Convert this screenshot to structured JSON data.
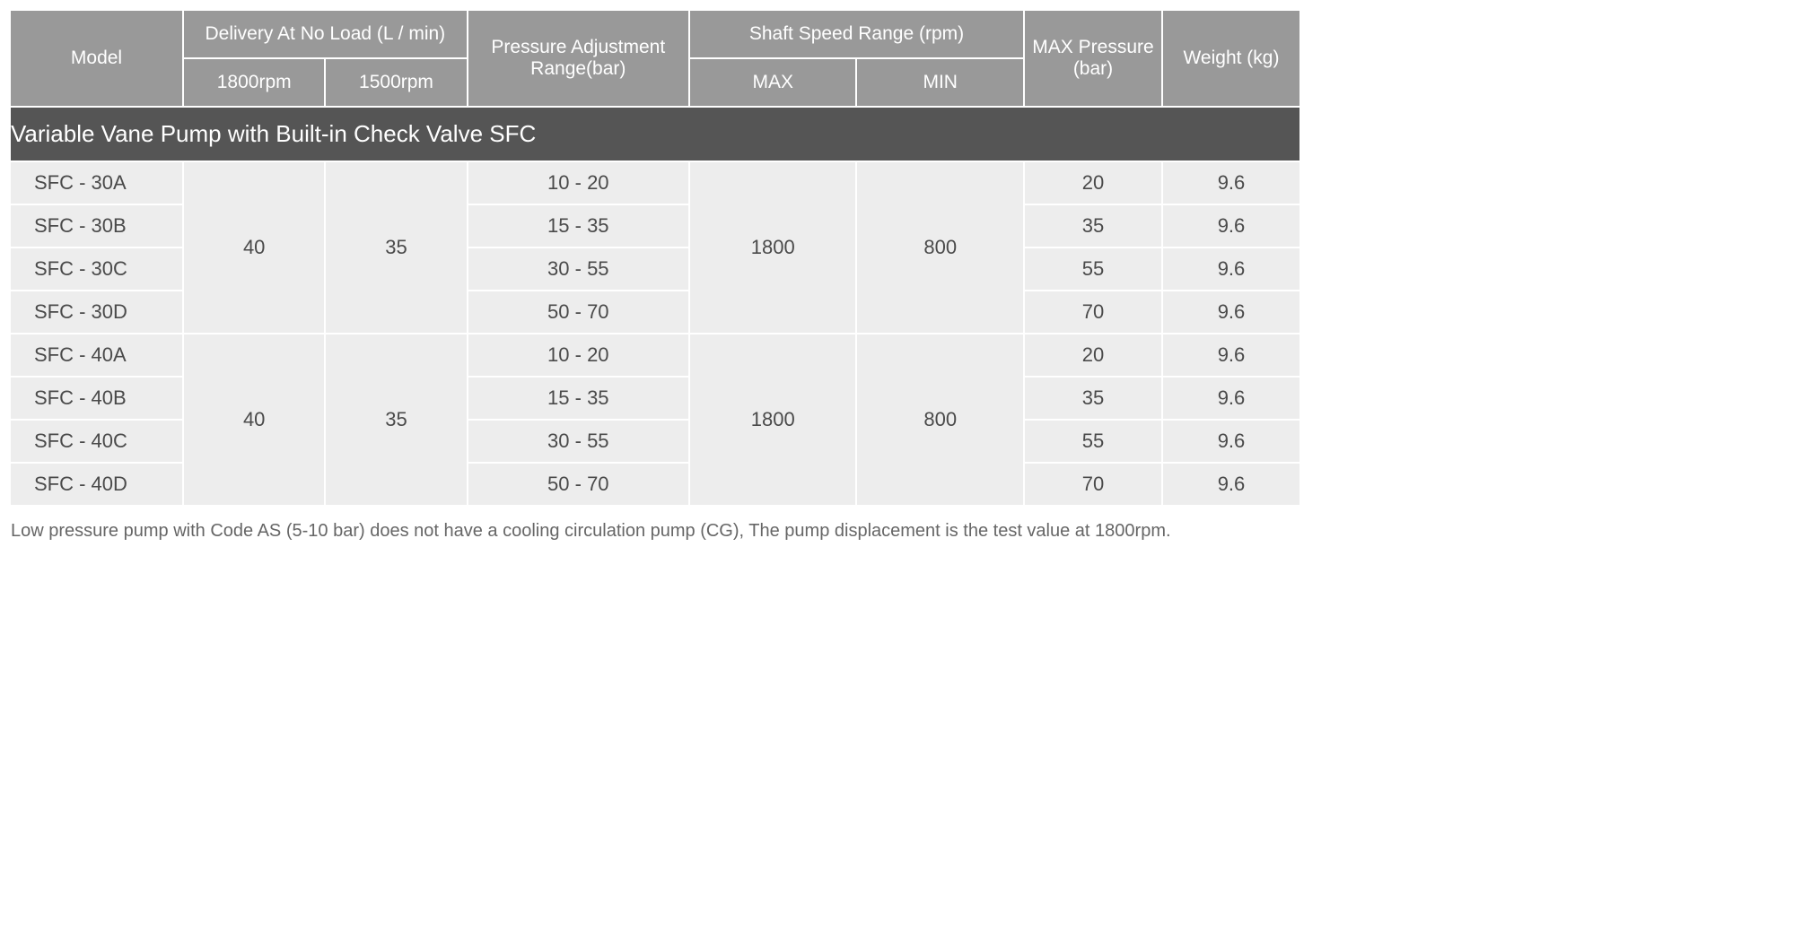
{
  "headers": {
    "model": "Model",
    "delivery": "Delivery At No Load (L / min)",
    "delivery_1800": "1800rpm",
    "delivery_1500": "1500rpm",
    "pressure_range": "Pressure Adjustment Range(bar)",
    "shaft_speed": "Shaft Speed Range (rpm)",
    "shaft_max": "MAX",
    "shaft_min": "MIN",
    "max_pressure": "MAX Pressure (bar)",
    "weight": "Weight (kg)"
  },
  "section_title": "Variable Vane Pump with Built-in Check Valve SFC",
  "groups": [
    {
      "delivery_1800": "40",
      "delivery_1500": "35",
      "shaft_max": "1800",
      "shaft_min": "800",
      "rows": [
        {
          "model": "SFC - 30A",
          "pressure_range": "10 - 20",
          "max_pressure": "20",
          "weight": "9.6"
        },
        {
          "model": "SFC - 30B",
          "pressure_range": "15 - 35",
          "max_pressure": "35",
          "weight": "9.6"
        },
        {
          "model": "SFC - 30C",
          "pressure_range": "30 - 55",
          "max_pressure": "55",
          "weight": "9.6"
        },
        {
          "model": "SFC - 30D",
          "pressure_range": "50 - 70",
          "max_pressure": "70",
          "weight": "9.6"
        }
      ]
    },
    {
      "delivery_1800": "40",
      "delivery_1500": "35",
      "shaft_max": "1800",
      "shaft_min": "800",
      "rows": [
        {
          "model": "SFC - 40A",
          "pressure_range": "10 - 20",
          "max_pressure": "20",
          "weight": "9.6"
        },
        {
          "model": "SFC - 40B",
          "pressure_range": "15 - 35",
          "max_pressure": "35",
          "weight": "9.6"
        },
        {
          "model": "SFC - 40C",
          "pressure_range": "30 - 55",
          "max_pressure": "55",
          "weight": "9.6"
        },
        {
          "model": "SFC - 40D",
          "pressure_range": "50 - 70",
          "max_pressure": "70",
          "weight": "9.6"
        }
      ]
    }
  ],
  "footnote": "Low pressure pump with Code AS (5-10 bar) does not have a cooling circulation pump (CG), The pump displacement is the test value at 1800rpm.",
  "style": {
    "header_bg": "#999999",
    "header_fg": "#ffffff",
    "cell_bg": "#ededed",
    "cell_fg": "#4a4a4a",
    "section_bg": "#555555",
    "section_fg": "#ffffff",
    "border_spacing": 2,
    "header_fontsize": 21,
    "cell_fontsize": 22,
    "section_fontsize": 26,
    "footnote_fontsize": 20,
    "col_widths": {
      "model": 176,
      "del1": 144,
      "del2": 144,
      "press": 226,
      "speed1": 170,
      "speed2": 170,
      "maxp": 140,
      "weight": 140
    }
  }
}
